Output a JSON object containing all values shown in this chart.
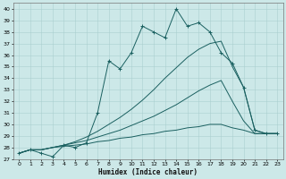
{
  "xlabel": "Humidex (Indice chaleur)",
  "xlim": [
    -0.5,
    23.5
  ],
  "ylim": [
    27,
    40.5
  ],
  "yticks": [
    27,
    28,
    29,
    30,
    31,
    32,
    33,
    34,
    35,
    36,
    37,
    38,
    39,
    40
  ],
  "xticks": [
    0,
    1,
    2,
    3,
    4,
    5,
    6,
    7,
    8,
    9,
    10,
    11,
    12,
    13,
    14,
    15,
    16,
    17,
    18,
    19,
    20,
    21,
    22,
    23
  ],
  "bg_color": "#cce8e8",
  "line_color": "#1a6060",
  "grid_color": "#aacfcf",
  "lines": [
    {
      "x": [
        0,
        1,
        2,
        3,
        4,
        5,
        6,
        7,
        8,
        9,
        10,
        11,
        12,
        13,
        14,
        15,
        16,
        17,
        18,
        19,
        20,
        21,
        22,
        23
      ],
      "y": [
        27.5,
        27.8,
        27.5,
        27.2,
        28.2,
        28.0,
        28.4,
        31.0,
        35.5,
        34.8,
        36.2,
        38.5,
        38.0,
        37.5,
        40.0,
        38.5,
        38.8,
        38.0,
        36.2,
        35.3,
        33.2,
        29.5,
        29.2,
        29.2
      ],
      "marker": "+"
    },
    {
      "x": [
        0,
        1,
        2,
        3,
        4,
        5,
        6,
        7,
        8,
        9,
        10,
        11,
        12,
        13,
        14,
        15,
        16,
        17,
        18,
        19,
        20,
        21,
        22,
        23
      ],
      "y": [
        27.5,
        27.8,
        27.8,
        28.0,
        28.2,
        28.5,
        28.9,
        29.4,
        30.0,
        30.6,
        31.3,
        32.1,
        33.0,
        34.0,
        34.9,
        35.8,
        36.5,
        37.0,
        37.2,
        35.0,
        33.2,
        29.5,
        29.2,
        29.2
      ],
      "marker": null
    },
    {
      "x": [
        0,
        1,
        2,
        3,
        4,
        5,
        6,
        7,
        8,
        9,
        10,
        11,
        12,
        13,
        14,
        15,
        16,
        17,
        18,
        19,
        20,
        21,
        22,
        23
      ],
      "y": [
        27.5,
        27.8,
        27.8,
        28.0,
        28.2,
        28.4,
        28.6,
        28.9,
        29.2,
        29.5,
        29.9,
        30.3,
        30.7,
        31.2,
        31.7,
        32.3,
        32.9,
        33.4,
        33.8,
        32.0,
        30.3,
        29.2,
        29.2,
        29.2
      ],
      "marker": null
    },
    {
      "x": [
        0,
        1,
        2,
        3,
        4,
        5,
        6,
        7,
        8,
        9,
        10,
        11,
        12,
        13,
        14,
        15,
        16,
        17,
        18,
        19,
        20,
        21,
        22,
        23
      ],
      "y": [
        27.5,
        27.8,
        27.8,
        28.0,
        28.1,
        28.2,
        28.3,
        28.5,
        28.6,
        28.8,
        28.9,
        29.1,
        29.2,
        29.4,
        29.5,
        29.7,
        29.8,
        30.0,
        30.0,
        29.7,
        29.5,
        29.2,
        29.2,
        29.2
      ],
      "marker": null
    }
  ]
}
